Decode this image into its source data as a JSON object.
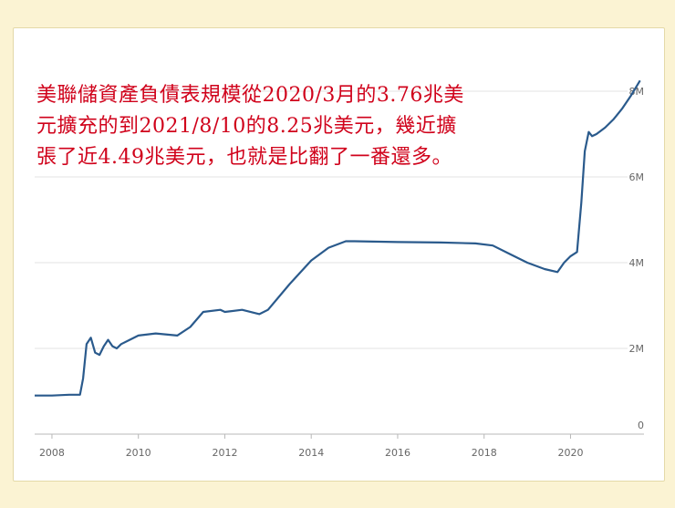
{
  "caption": {
    "line1": "美聯儲資產負債表規模從2020/3月的3.76兆美",
    "line2": "元擴充的到2021/8/10的8.25兆美元，幾近擴",
    "line3": "張了近4.49兆美元，也就是比翻了一番還多。",
    "color": "#d0021b"
  },
  "chart_data": {
    "type": "line",
    "title": "",
    "xlabel": "",
    "ylabel": "",
    "x_ticks": [
      "2008",
      "2010",
      "2012",
      "2014",
      "2016",
      "2018",
      "2020"
    ],
    "y_ticks": [
      "0",
      "2M",
      "4M",
      "6M",
      "8M"
    ],
    "xlim": [
      2007.6,
      2021.7
    ],
    "ylim": [
      0,
      8
    ],
    "grid": "horizontal",
    "line_color": "#2a5a8c",
    "series": [
      {
        "name": "",
        "x": [
          2007.6,
          2008.0,
          2008.4,
          2008.65,
          2008.72,
          2008.8,
          2008.9,
          2009.0,
          2009.1,
          2009.2,
          2009.3,
          2009.4,
          2009.5,
          2009.6,
          2009.8,
          2010.0,
          2010.4,
          2010.9,
          2011.2,
          2011.5,
          2011.9,
          2012.0,
          2012.4,
          2012.8,
          2013.0,
          2013.5,
          2014.0,
          2014.4,
          2014.8,
          2015.0,
          2016.0,
          2017.0,
          2017.8,
          2018.2,
          2018.6,
          2019.0,
          2019.4,
          2019.7,
          2019.85,
          2020.0,
          2020.15,
          2020.25,
          2020.33,
          2020.42,
          2020.5,
          2020.6,
          2020.8,
          2021.0,
          2021.2,
          2021.4,
          2021.61
        ],
        "y": [
          0.9,
          0.9,
          0.92,
          0.92,
          1.3,
          2.1,
          2.25,
          1.9,
          1.85,
          2.05,
          2.2,
          2.05,
          2.0,
          2.1,
          2.2,
          2.3,
          2.35,
          2.3,
          2.5,
          2.85,
          2.9,
          2.85,
          2.9,
          2.8,
          2.9,
          3.5,
          4.05,
          4.35,
          4.5,
          4.5,
          4.48,
          4.47,
          4.45,
          4.4,
          4.2,
          4.0,
          3.85,
          3.78,
          4.0,
          4.15,
          4.25,
          5.4,
          6.6,
          7.05,
          6.95,
          7.0,
          7.15,
          7.35,
          7.6,
          7.9,
          8.25
        ]
      }
    ]
  }
}
